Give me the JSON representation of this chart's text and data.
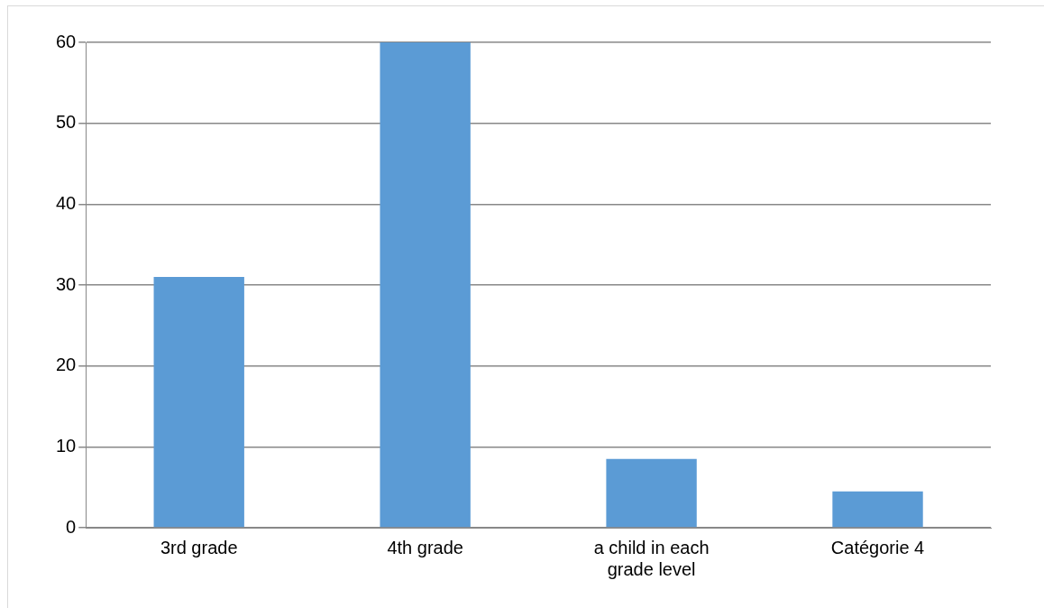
{
  "chart_data": {
    "type": "bar",
    "categories": [
      "3rd grade",
      "4th grade",
      "a child in each grade level",
      "Catégorie 4"
    ],
    "values": [
      31,
      60,
      8.5,
      4.5
    ],
    "color": "#5b9bd5",
    "ylim": [
      0,
      60
    ],
    "yticks": [
      0,
      10,
      20,
      30,
      40,
      50,
      60
    ],
    "grid": "y"
  }
}
